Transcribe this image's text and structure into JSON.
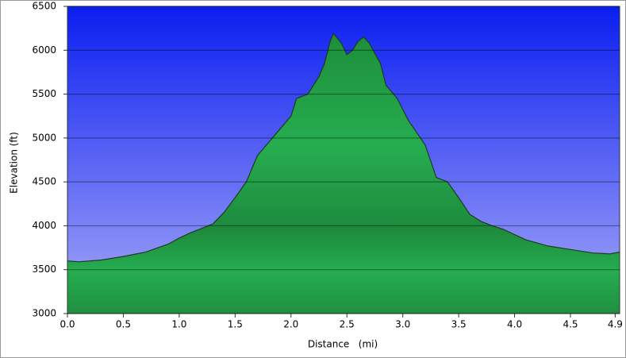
{
  "chart_data": {
    "type": "area",
    "x_label": "Distance   (mi)",
    "y_label": "Elevation (ft)",
    "color": "#26ad50",
    "line_color": "#1e3a22",
    "grid": true,
    "xlim": [
      0,
      4.94
    ],
    "ylim": [
      3000,
      6500
    ],
    "xticks": [
      {
        "value": 0,
        "label": "0.0"
      },
      0.5,
      {
        "value": 1,
        "label": "1.0"
      },
      1.5,
      {
        "value": 2,
        "label": "2.0"
      },
      2.5,
      {
        "value": 3,
        "label": "3.0"
      },
      3.5,
      {
        "value": 4,
        "label": "4.0"
      },
      4.5,
      4.9
    ],
    "yticks": [
      3000,
      3500,
      4000,
      4500,
      5000,
      5500,
      6000,
      6500
    ],
    "x": [
      0,
      0.1,
      0.3,
      0.5,
      0.7,
      0.9,
      1.0,
      1.1,
      1.3,
      1.4,
      1.5,
      1.6,
      1.7,
      1.8,
      1.9,
      2.0,
      2.05,
      2.15,
      2.25,
      2.3,
      2.35,
      2.38,
      2.45,
      2.5,
      2.55,
      2.6,
      2.65,
      2.7,
      2.8,
      2.85,
      2.95,
      3.05,
      3.2,
      3.3,
      3.4,
      3.5,
      3.6,
      3.7,
      3.8,
      3.9,
      4.0,
      4.1,
      4.3,
      4.5,
      4.7,
      4.85,
      4.94
    ],
    "values": [
      3600,
      3590,
      3610,
      3650,
      3700,
      3790,
      3860,
      3920,
      4020,
      4150,
      4320,
      4500,
      4800,
      4950,
      5100,
      5250,
      5450,
      5500,
      5700,
      5850,
      6100,
      6190,
      6080,
      5950,
      6000,
      6100,
      6150,
      6080,
      5850,
      5600,
      5450,
      5200,
      4920,
      4550,
      4500,
      4320,
      4130,
      4050,
      4000,
      3960,
      3900,
      3840,
      3770,
      3730,
      3690,
      3680,
      3700
    ]
  }
}
